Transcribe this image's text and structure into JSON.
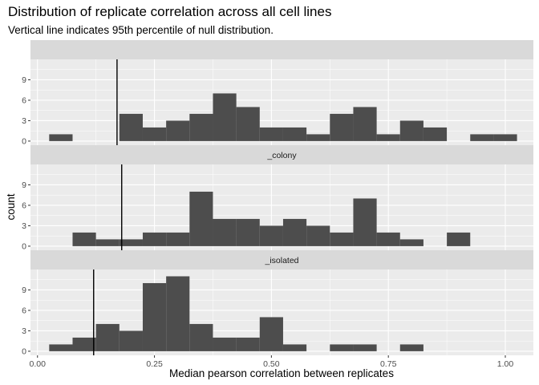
{
  "title": "Distribution of replicate correlation across all cell lines",
  "subtitle": "Vertical line indicates 95th percentile of null distribution.",
  "colors": {
    "panel_bg": "#ebebeb",
    "strip_bg": "#d9d9d9",
    "bar": "#4d4d4d",
    "grid_major": "#ffffff",
    "vline": "#000000"
  },
  "chart_data": {
    "type": "bar",
    "subtype": "histogram-facets",
    "xlabel": "Median pearson correlation between replicates",
    "ylabel": "count",
    "xlim": [
      -0.015,
      1.06
    ],
    "ylim": [
      -0.6,
      12
    ],
    "bin_width": 0.05,
    "bin_centers": [
      0.05,
      0.1,
      0.15,
      0.2,
      0.25,
      0.3,
      0.35,
      0.4,
      0.45,
      0.5,
      0.55,
      0.6,
      0.65,
      0.7,
      0.75,
      0.8,
      0.85,
      0.9,
      0.95,
      1.0
    ],
    "x_ticks": [
      0.0,
      0.25,
      0.5,
      0.75,
      1.0
    ],
    "x_tick_labels": [
      "0.00",
      "0.25",
      "0.50",
      "0.75",
      "1.00"
    ],
    "y_ticks": [
      0,
      3,
      6,
      9
    ],
    "y_tick_labels": [
      "0",
      "3",
      "6",
      "9"
    ],
    "grid": true,
    "panels": [
      {
        "strip": "",
        "counts": [
          1,
          0,
          0,
          4,
          2,
          3,
          4,
          7,
          5,
          2,
          2,
          1,
          4,
          5,
          1,
          3,
          2,
          0,
          1,
          1
        ],
        "vline": 0.17
      },
      {
        "strip": "_colony",
        "counts": [
          0,
          2,
          1,
          1,
          2,
          2,
          8,
          4,
          4,
          3,
          4,
          3,
          2,
          7,
          2,
          1,
          0,
          2,
          0,
          0
        ],
        "vline": 0.18
      },
      {
        "strip": "_isolated",
        "counts": [
          1,
          2,
          4,
          3,
          10,
          11,
          4,
          2,
          2,
          5,
          1,
          0,
          1,
          1,
          0,
          1,
          0,
          0,
          0,
          0
        ],
        "vline": 0.12
      }
    ]
  }
}
